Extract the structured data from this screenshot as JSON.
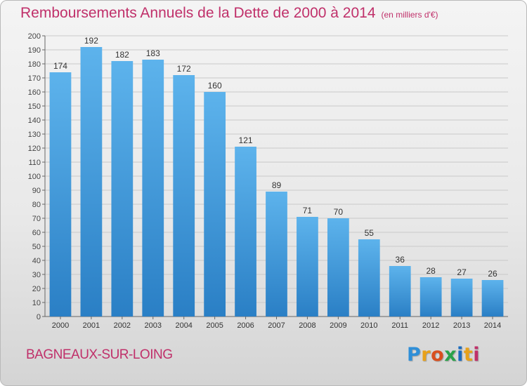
{
  "header": {
    "title": "Remboursements Annuels de la Dette de 2000 à 2014",
    "unit": "(en milliers d'€)"
  },
  "footer": {
    "city": "BAGNEAUX-SUR-LOING",
    "logo_letters": [
      "P",
      "r",
      "o",
      "x",
      "i",
      "t",
      "i"
    ],
    "logo_colors": [
      "#2f8fd8",
      "#e8a11a",
      "#d94f1e",
      "#2aa24a",
      "#1a6bbf",
      "#e8a11a",
      "#c0306a"
    ]
  },
  "chart_data": {
    "type": "bar",
    "title": "Remboursements Annuels de la Dette de 2000 à 2014",
    "categories": [
      "2000",
      "2001",
      "2002",
      "2003",
      "2004",
      "2005",
      "2006",
      "2007",
      "2008",
      "2009",
      "2010",
      "2011",
      "2012",
      "2013",
      "2014"
    ],
    "values": [
      174,
      192,
      182,
      183,
      172,
      160,
      121,
      89,
      71,
      70,
      55,
      36,
      28,
      27,
      26
    ],
    "ylim": [
      0,
      200
    ],
    "ytick_step": 10,
    "grid": true,
    "bar_color_top": "#5db3ec",
    "bar_color_bottom": "#2a7fc5"
  }
}
